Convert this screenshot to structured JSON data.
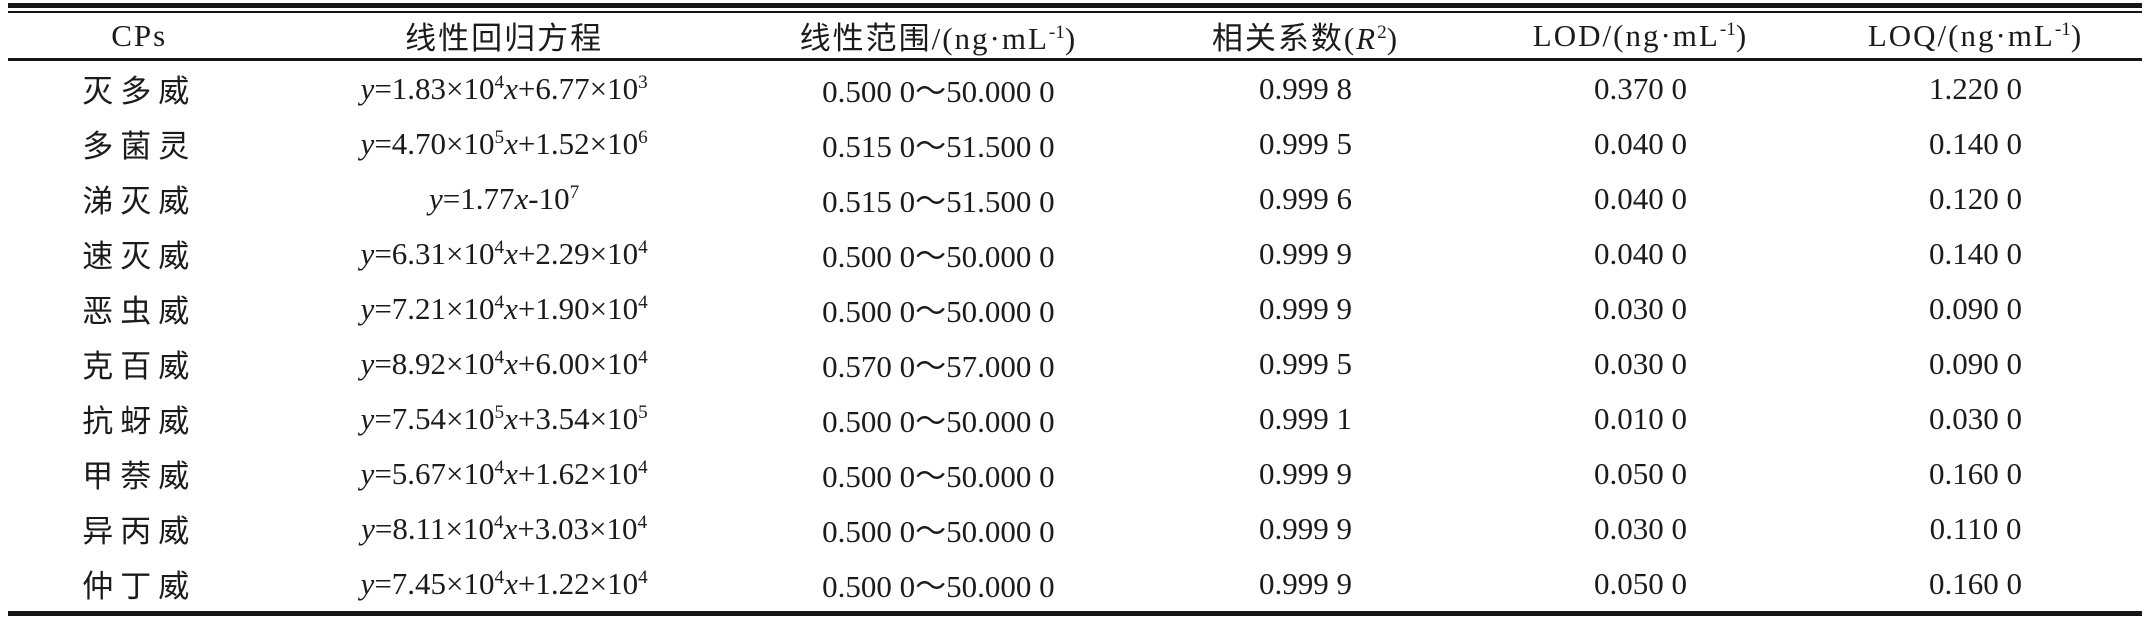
{
  "colors": {
    "text": "#1b1b1b",
    "rule": "#151515",
    "background": "#ffffff"
  },
  "table": {
    "columns": [
      {
        "key": "name",
        "label": "CPs"
      },
      {
        "key": "equation",
        "label": "线性回归方程"
      },
      {
        "key": "range",
        "label": "线性范围/(ng·mL⁻¹)"
      },
      {
        "key": "r2",
        "label": "相关系数(R²)"
      },
      {
        "key": "lod",
        "label": "LOD/(ng·mL⁻¹)"
      },
      {
        "key": "loq",
        "label": "LOQ/(ng·mL⁻¹)"
      }
    ],
    "rows": [
      {
        "name": "灭多威",
        "equation": "y=1.83×10⁴x+6.77×10³",
        "range": "0.500 0～50.000 0",
        "r2": "0.999 8",
        "lod": "0.370 0",
        "loq": "1.220 0"
      },
      {
        "name": "多菌灵",
        "equation": "y=4.70×10⁵x+1.52×10⁶",
        "range": "0.515 0～51.500 0",
        "r2": "0.999 5",
        "lod": "0.040 0",
        "loq": "0.140 0"
      },
      {
        "name": "涕灭威",
        "equation": "y=1.77x-10⁷",
        "range": "0.515 0～51.500 0",
        "r2": "0.999 6",
        "lod": "0.040 0",
        "loq": "0.120 0"
      },
      {
        "name": "速灭威",
        "equation": "y=6.31×10⁴x+2.29×10⁴",
        "range": "0.500 0～50.000 0",
        "r2": "0.999 9",
        "lod": "0.040 0",
        "loq": "0.140 0"
      },
      {
        "name": "恶虫威",
        "equation": "y=7.21×10⁴x+1.90×10⁴",
        "range": "0.500 0～50.000 0",
        "r2": "0.999 9",
        "lod": "0.030 0",
        "loq": "0.090 0"
      },
      {
        "name": "克百威",
        "equation": "y=8.92×10⁴x+6.00×10⁴",
        "range": "0.570 0～57.000 0",
        "r2": "0.999 5",
        "lod": "0.030 0",
        "loq": "0.090 0"
      },
      {
        "name": "抗蚜威",
        "equation": "y=7.54×10⁵x+3.54×10⁵",
        "range": "0.500 0～50.000 0",
        "r2": "0.999 1",
        "lod": "0.010 0",
        "loq": "0.030 0"
      },
      {
        "name": "甲萘威",
        "equation": "y=5.67×10⁴x+1.62×10⁴",
        "range": "0.500 0～50.000 0",
        "r2": "0.999 9",
        "lod": "0.050 0",
        "loq": "0.160 0"
      },
      {
        "name": "异丙威",
        "equation": "y=8.11×10⁴x+3.03×10⁴",
        "range": "0.500 0～50.000 0",
        "r2": "0.999 9",
        "lod": "0.030 0",
        "loq": "0.110 0"
      },
      {
        "name": "仲丁威",
        "equation": "y=7.45×10⁴x+1.22×10⁴",
        "range": "0.500 0～50.000 0",
        "r2": "0.999 9",
        "lod": "0.050 0",
        "loq": "0.160 0"
      }
    ]
  }
}
